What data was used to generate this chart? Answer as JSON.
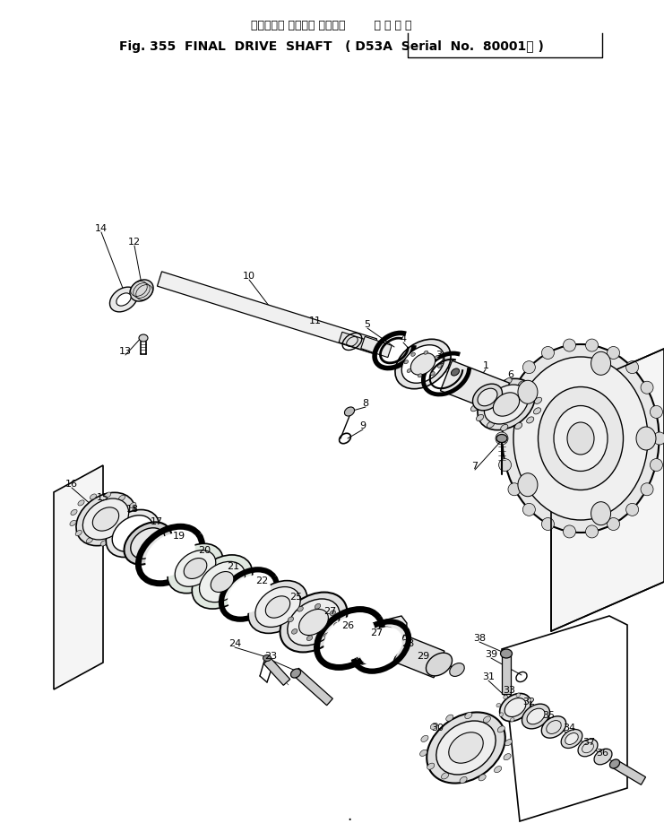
{
  "title_jp": "ファイナル ドライブ シャフト",
  "title_apply_jp": "適 用 号 機",
  "title_en": "Fig. 355  FINAL  DRIVE  SHAFT",
  "title_serial": "D53A  Serial  No.  80001～",
  "bg_color": "#ffffff",
  "figsize": [
    7.41,
    9.29
  ],
  "dpi": 100
}
